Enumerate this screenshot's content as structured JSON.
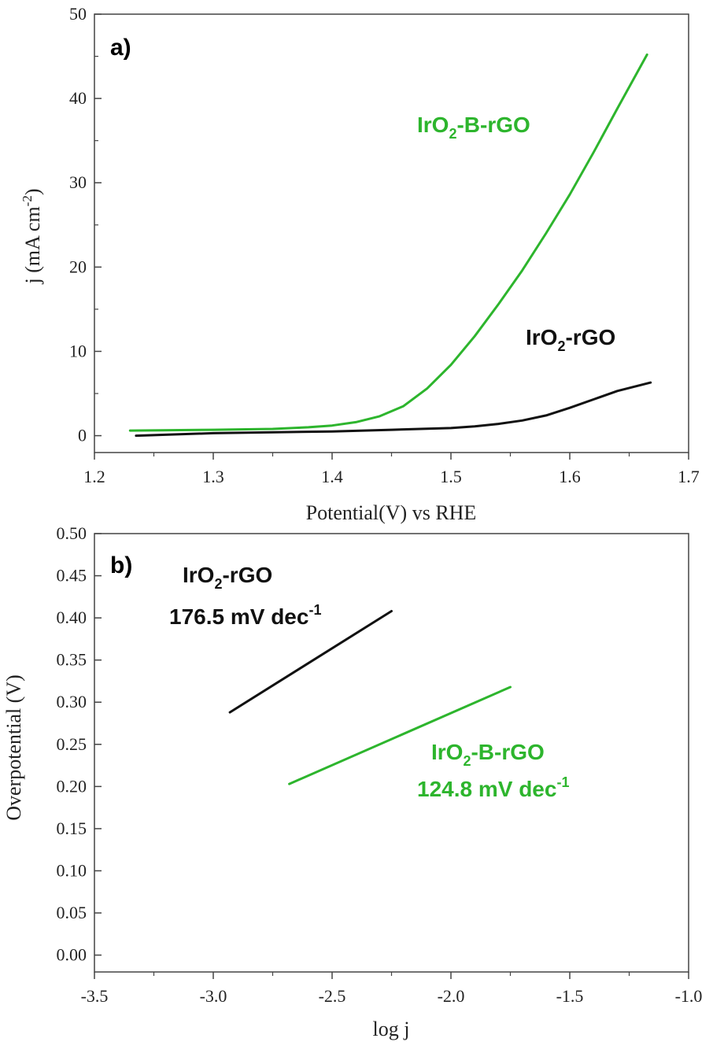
{
  "chart_data": [
    {
      "type": "line",
      "panel_label": "a)",
      "xlabel": "Potential(V) vs RHE",
      "ylabel": "j (mA cm-2)",
      "ylabel_parts": {
        "main": "j (mA cm",
        "sup": "-2",
        "close": ")"
      },
      "xlim": [
        1.2,
        1.7
      ],
      "ylim": [
        -2,
        50
      ],
      "xticks": [
        "1.2",
        "1.3",
        "1.4",
        "1.5",
        "1.6",
        "1.7"
      ],
      "yticks": [
        "0",
        "10",
        "20",
        "30",
        "40",
        "50"
      ],
      "series": [
        {
          "name": "IrO2-B-rGO",
          "label_parts": {
            "a": "IrO",
            "sub": "2",
            "b": "-B-rGO"
          },
          "color": "#2db52d",
          "x": [
            1.23,
            1.3,
            1.35,
            1.38,
            1.4,
            1.42,
            1.44,
            1.46,
            1.48,
            1.5,
            1.52,
            1.54,
            1.56,
            1.58,
            1.6,
            1.62,
            1.64,
            1.665
          ],
          "y": [
            0.6,
            0.7,
            0.8,
            1.0,
            1.2,
            1.6,
            2.3,
            3.5,
            5.6,
            8.4,
            11.8,
            15.6,
            19.6,
            24.0,
            28.6,
            33.6,
            38.8,
            45.2
          ]
        },
        {
          "name": "IrO2-rGO",
          "label_parts": {
            "a": "IrO",
            "sub": "2",
            "b": "-rGO"
          },
          "color": "#111111",
          "x": [
            1.235,
            1.3,
            1.4,
            1.45,
            1.5,
            1.52,
            1.54,
            1.56,
            1.58,
            1.6,
            1.62,
            1.64,
            1.668
          ],
          "y": [
            0.0,
            0.3,
            0.5,
            0.7,
            0.9,
            1.1,
            1.4,
            1.8,
            2.4,
            3.3,
            4.3,
            5.3,
            6.3
          ]
        }
      ]
    },
    {
      "type": "line",
      "panel_label": "b)",
      "xlabel": "log j",
      "ylabel": "Overpotential (V)",
      "xlim": [
        -3.5,
        -1.0
      ],
      "ylim": [
        -0.02,
        0.5
      ],
      "xticks": [
        "-3.5",
        "-3.0",
        "-2.5",
        "-2.0",
        "-1.5",
        "-1.0"
      ],
      "yticks": [
        "0.00",
        "0.05",
        "0.10",
        "0.15",
        "0.20",
        "0.25",
        "0.30",
        "0.35",
        "0.40",
        "0.45",
        "0.50"
      ],
      "series": [
        {
          "name": "IrO2-rGO",
          "label_parts": {
            "a": "IrO",
            "sub": "2",
            "b": "-rGO"
          },
          "slope_parts": {
            "a": "176.5 mV dec",
            "sup": "-1"
          },
          "color": "#111111",
          "x": [
            -2.93,
            -2.25
          ],
          "y": [
            0.288,
            0.408
          ]
        },
        {
          "name": "IrO2-B-rGO",
          "label_parts": {
            "a": "IrO",
            "sub": "2",
            "b": "-B-rGO"
          },
          "slope_parts": {
            "a": "124.8 mV dec",
            "sup": "-1"
          },
          "color": "#2db52d",
          "x": [
            -2.68,
            -1.75
          ],
          "y": [
            0.203,
            0.318
          ]
        }
      ]
    }
  ]
}
